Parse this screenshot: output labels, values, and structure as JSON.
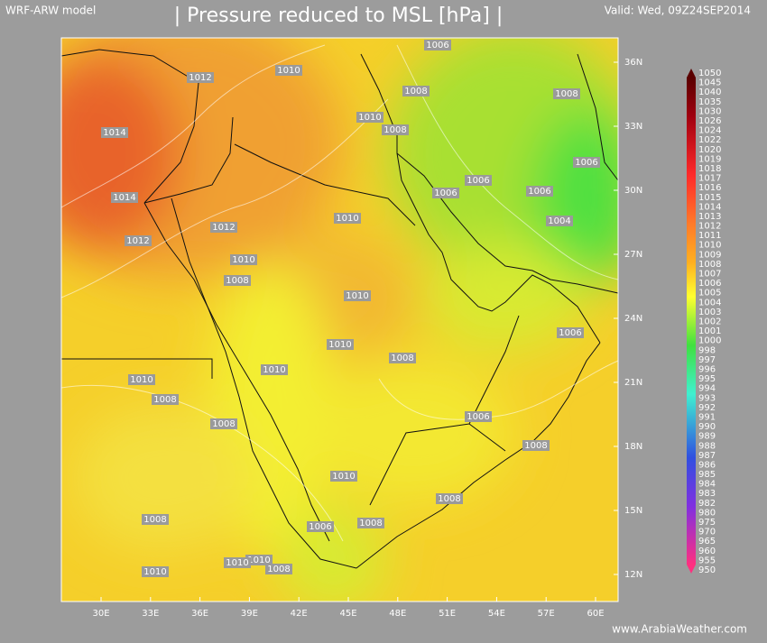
{
  "header": {
    "model": "WRF-ARW model",
    "title": "| Pressure reduced to MSL [hPa] |",
    "valid": "Valid: Wed, 09Z24SEP2014"
  },
  "map": {
    "lon_labels": [
      "30E",
      "33E",
      "36E",
      "39E",
      "42E",
      "45E",
      "48E",
      "51E",
      "54E",
      "57E",
      "60E"
    ],
    "lat_labels": [
      "36N",
      "33N",
      "30N",
      "27N",
      "24N",
      "21N",
      "18N",
      "15N",
      "12N"
    ],
    "contour_labels": [
      "1006",
      "1010",
      "1012",
      "1008",
      "1008",
      "1010",
      "1008",
      "1014",
      "1006",
      "1006",
      "1006",
      "1006",
      "1014",
      "1010",
      "1004",
      "1012",
      "1012",
      "1010",
      "1008",
      "1010",
      "1006",
      "1010",
      "1008",
      "1010",
      "1010",
      "1008",
      "1006",
      "1008",
      "1008",
      "1010",
      "1008",
      "1008",
      "1008",
      "1006",
      "1010",
      "1010",
      "1008",
      "1010"
    ]
  },
  "colorbar": {
    "labels": [
      "1050",
      "1045",
      "1040",
      "1035",
      "1030",
      "1026",
      "1024",
      "1022",
      "1020",
      "1019",
      "1018",
      "1017",
      "1016",
      "1015",
      "1014",
      "1013",
      "1012",
      "1011",
      "1010",
      "1009",
      "1008",
      "1007",
      "1006",
      "1005",
      "1004",
      "1003",
      "1002",
      "1001",
      "1000",
      "998",
      "997",
      "996",
      "995",
      "994",
      "993",
      "992",
      "991",
      "990",
      "989",
      "988",
      "987",
      "986",
      "985",
      "984",
      "983",
      "982",
      "980",
      "975",
      "970",
      "965",
      "960",
      "955",
      "950"
    ]
  },
  "footer": {
    "credit": "www.ArabiaWeather.com"
  }
}
